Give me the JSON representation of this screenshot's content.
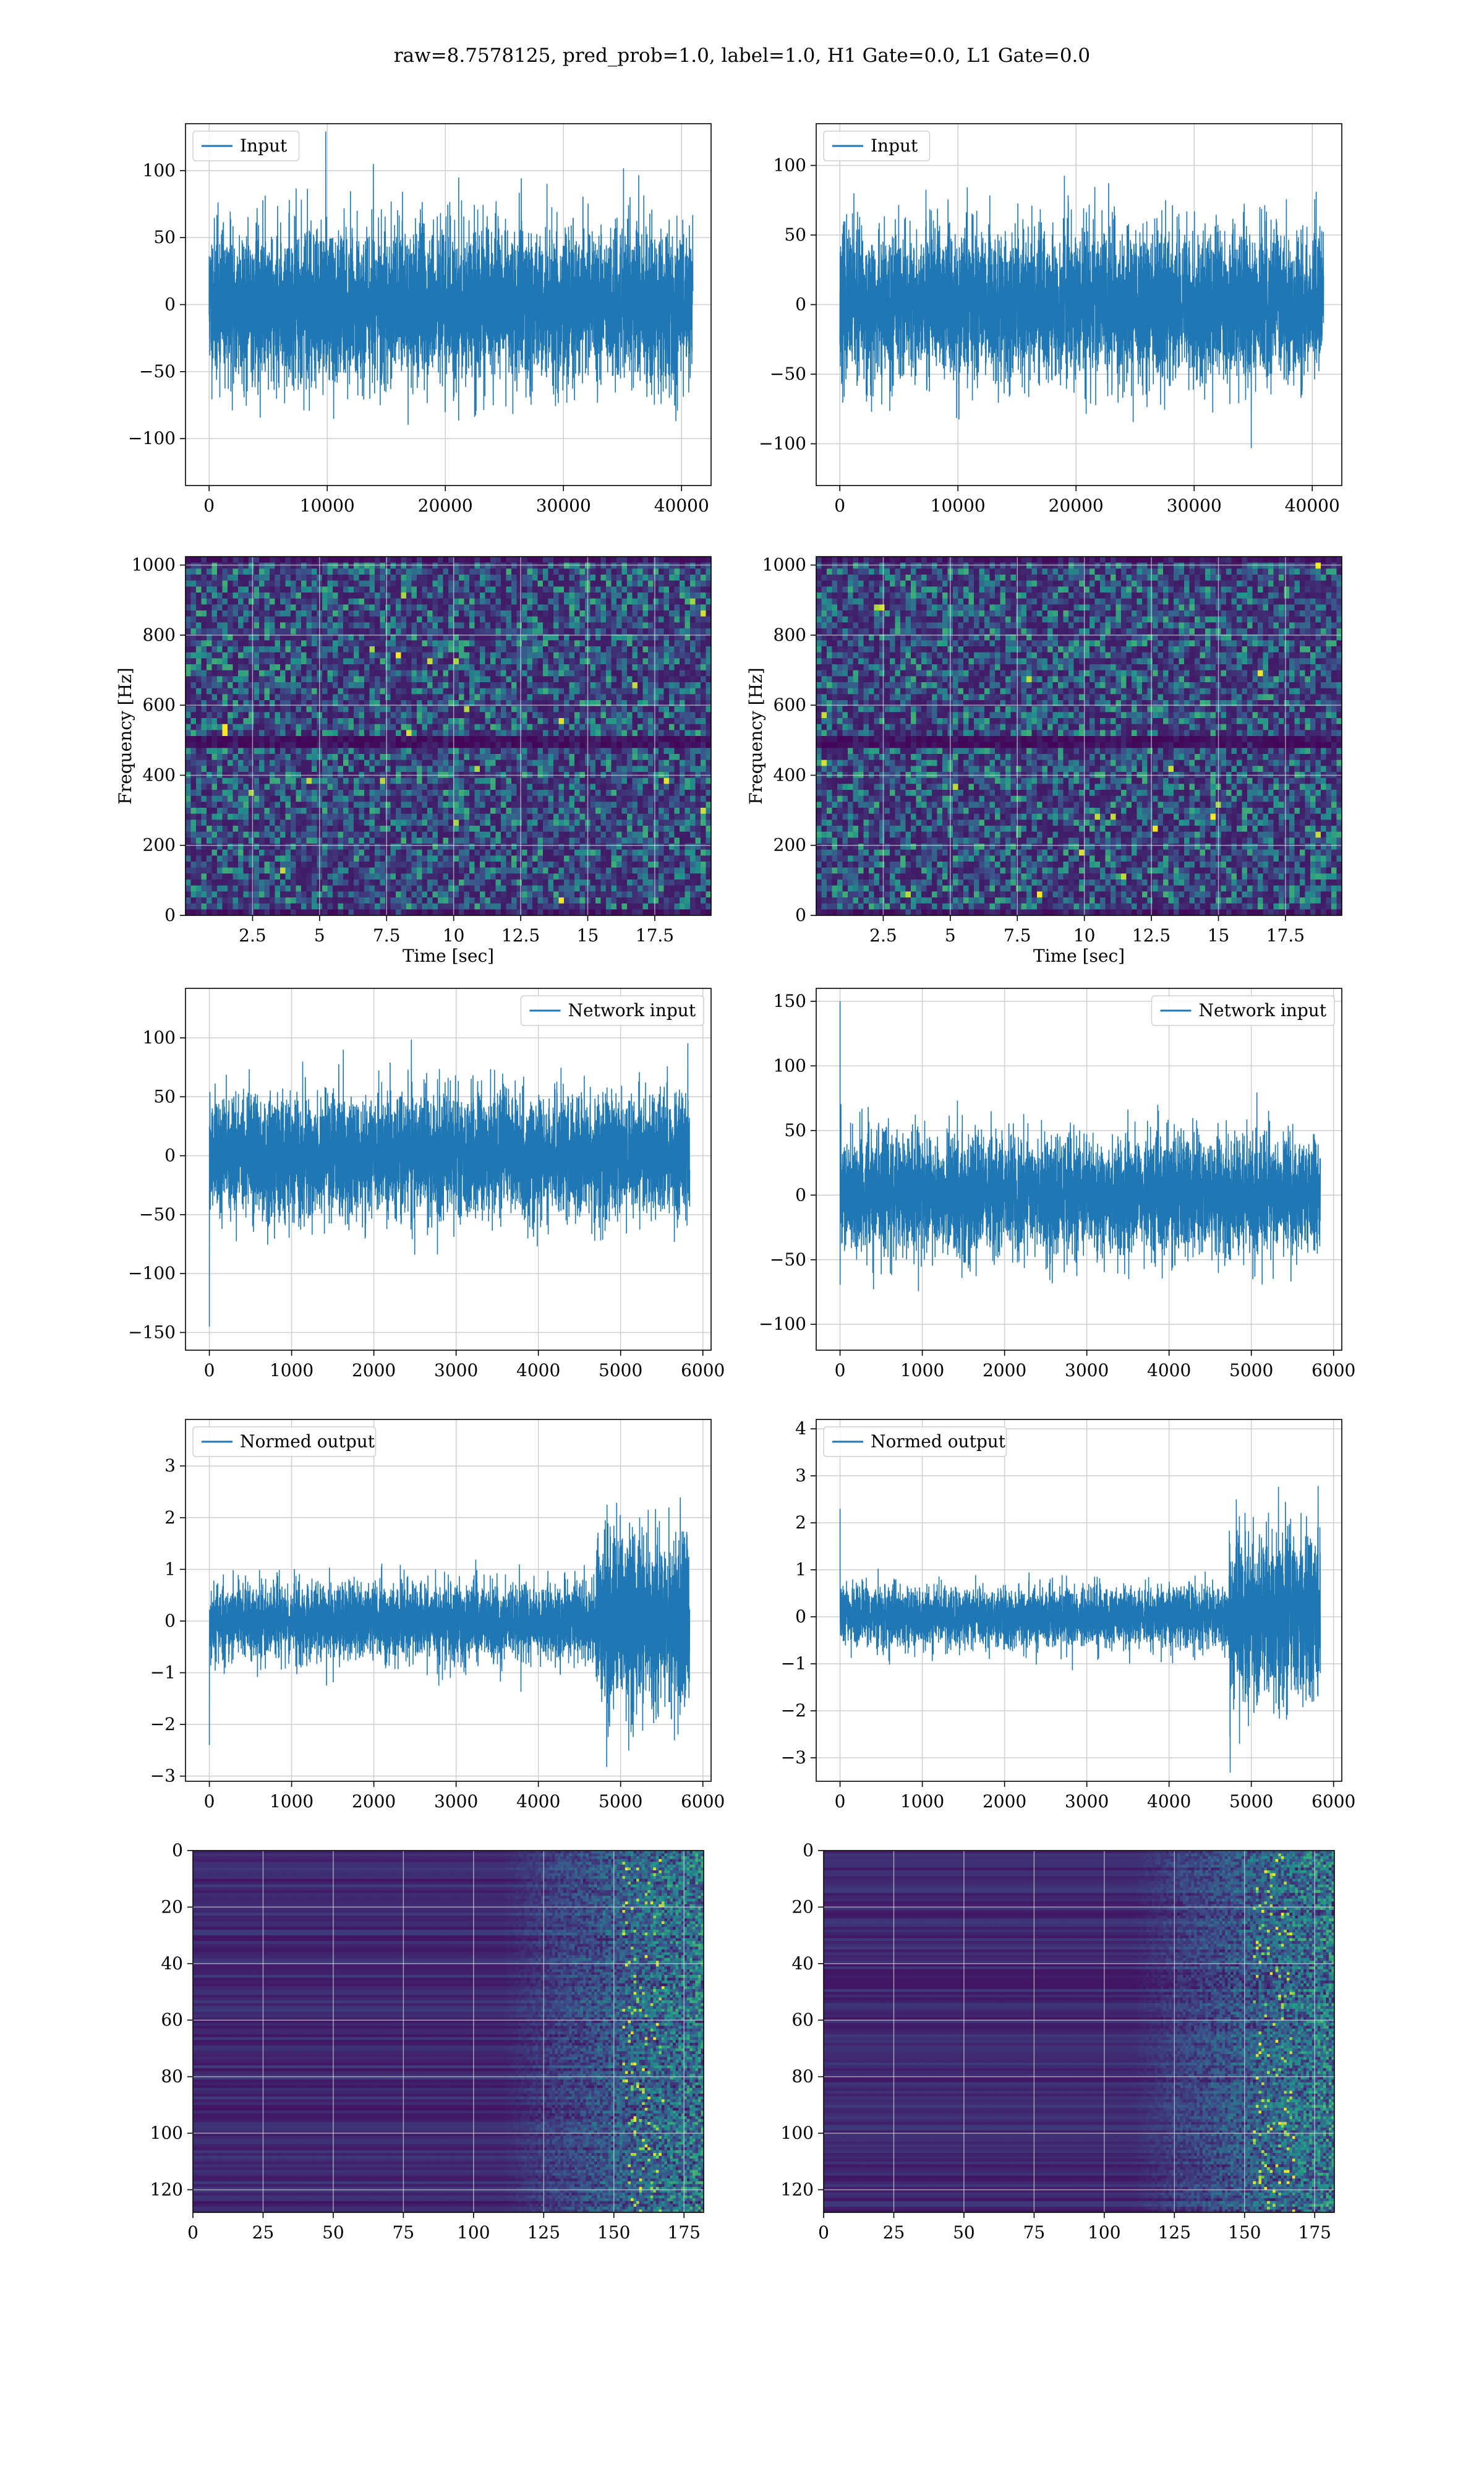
{
  "figure": {
    "title": "raw=8.7578125, pred_prob=1.0, label=1.0, H1 Gate=0.0, L1 Gate=0.0"
  },
  "colors": {
    "line": "#1f77b4",
    "grid": "#cfcfcf",
    "viridis": [
      "#440154",
      "#3b528b",
      "#21918c",
      "#5ec962",
      "#fde725"
    ]
  },
  "chart_data": [
    {
      "id": "input-left",
      "type": "line",
      "legend": "Input",
      "legend_loc": "upper-left",
      "xlim": [
        -2000,
        42500
      ],
      "ylim": [
        -135,
        135
      ],
      "xticks": [
        0,
        10000,
        20000,
        30000,
        40000
      ],
      "yticks": [
        -100,
        -50,
        0,
        50,
        100
      ],
      "yticklabels": [
        "−100",
        "−50",
        "0",
        "50",
        "100"
      ],
      "signal": {
        "n": 40960,
        "x_end": 40960,
        "std": 28,
        "seed": 11
      },
      "xlabel": "",
      "ylabel": "",
      "grid": true
    },
    {
      "id": "input-right",
      "type": "line",
      "legend": "Input",
      "legend_loc": "upper-left",
      "xlim": [
        -2000,
        42500
      ],
      "ylim": [
        -130,
        130
      ],
      "xticks": [
        0,
        10000,
        20000,
        30000,
        40000
      ],
      "yticks": [
        -100,
        -50,
        0,
        50,
        100
      ],
      "yticklabels": [
        "−100",
        "−50",
        "0",
        "50",
        "100"
      ],
      "signal": {
        "n": 40960,
        "x_end": 40960,
        "std": 26,
        "seed": 23
      },
      "xlabel": "",
      "ylabel": "",
      "grid": true
    },
    {
      "id": "spectrogram-left",
      "type": "heatmap",
      "xlim": [
        0,
        19.6
      ],
      "ylim": [
        0,
        1024
      ],
      "xticks": [
        2.5,
        5.0,
        7.5,
        10.0,
        12.5,
        15.0,
        17.5
      ],
      "yticks": [
        0,
        200,
        400,
        600,
        800,
        1000
      ],
      "xlabel": "Time [sec]",
      "ylabel": "Frequency [Hz]",
      "grid": true,
      "cells": {
        "cols": 100,
        "rows": 60,
        "seed": 5,
        "dark_band_hz": 500
      }
    },
    {
      "id": "spectrogram-right",
      "type": "heatmap",
      "xlim": [
        0,
        19.6
      ],
      "ylim": [
        0,
        1024
      ],
      "xticks": [
        2.5,
        5.0,
        7.5,
        10.0,
        12.5,
        15.0,
        17.5
      ],
      "yticks": [
        0,
        200,
        400,
        600,
        800,
        1000
      ],
      "xlabel": "Time [sec]",
      "ylabel": "Frequency [Hz]",
      "grid": true,
      "cells": {
        "cols": 100,
        "rows": 60,
        "seed": 9,
        "dark_band_hz": 500
      }
    },
    {
      "id": "network-input-left",
      "type": "line",
      "legend": "Network input",
      "legend_loc": "upper-right",
      "xlim": [
        -290,
        6100
      ],
      "ylim": [
        -165,
        142
      ],
      "xticks": [
        0,
        1000,
        2000,
        3000,
        4000,
        5000,
        6000
      ],
      "yticks": [
        -150,
        -100,
        -50,
        0,
        50,
        100
      ],
      "yticklabels": [
        "−150",
        "−100",
        "−50",
        "0",
        "50",
        "100"
      ],
      "signal": {
        "n": 5840,
        "x_end": 5840,
        "std": 25,
        "seed": 31,
        "start_spike": -145
      },
      "xlabel": "",
      "ylabel": "",
      "grid": true
    },
    {
      "id": "network-input-right",
      "type": "line",
      "legend": "Network input",
      "legend_loc": "upper-right",
      "xlim": [
        -290,
        6100
      ],
      "ylim": [
        -120,
        160
      ],
      "xticks": [
        0,
        1000,
        2000,
        3000,
        4000,
        5000,
        6000
      ],
      "yticks": [
        -100,
        -50,
        0,
        50,
        100,
        150
      ],
      "yticklabels": [
        "−100",
        "−50",
        "0",
        "50",
        "100",
        "150"
      ],
      "signal": {
        "n": 5840,
        "x_end": 5840,
        "std": 22,
        "seed": 47,
        "start_spike": 150
      },
      "xlabel": "",
      "ylabel": "",
      "grid": true
    },
    {
      "id": "normed-output-left",
      "type": "line",
      "legend": "Normed output",
      "legend_loc": "upper-left",
      "xlim": [
        -290,
        6100
      ],
      "ylim": [
        -3.1,
        3.9
      ],
      "xticks": [
        0,
        1000,
        2000,
        3000,
        4000,
        5000,
        6000
      ],
      "yticks": [
        -3,
        -2,
        -1,
        0,
        1,
        2,
        3
      ],
      "yticklabels": [
        "−3",
        "−2",
        "−1",
        "0",
        "1",
        "2",
        "3"
      ],
      "signal": {
        "n": 5840,
        "x_end": 5840,
        "std": 0.36,
        "seed": 53,
        "start_spike": -2.4,
        "burst_from": 4700,
        "burst_gain": 2.4
      },
      "xlabel": "",
      "ylabel": "",
      "grid": true
    },
    {
      "id": "normed-output-right",
      "type": "line",
      "legend": "Normed output",
      "legend_loc": "upper-left",
      "xlim": [
        -290,
        6100
      ],
      "ylim": [
        -3.5,
        4.2
      ],
      "xticks": [
        0,
        1000,
        2000,
        3000,
        4000,
        5000,
        6000
      ],
      "yticks": [
        -3,
        -2,
        -1,
        0,
        1,
        2,
        3,
        4
      ],
      "yticklabels": [
        "−3",
        "−2",
        "−1",
        "0",
        "1",
        "2",
        "3",
        "4"
      ],
      "signal": {
        "n": 5840,
        "x_end": 5840,
        "std": 0.3,
        "seed": 67,
        "start_spike": 2.3,
        "burst_from": 4730,
        "burst_gain": 3.0
      },
      "xlabel": "",
      "ylabel": "",
      "grid": true
    },
    {
      "id": "feature-map-left",
      "type": "heatmap",
      "xlim": [
        0,
        182
      ],
      "ylim": [
        128,
        0
      ],
      "xticks": [
        0,
        25,
        50,
        75,
        100,
        125,
        150,
        175
      ],
      "yticks": [
        0,
        20,
        40,
        60,
        80,
        100,
        120
      ],
      "xlabel": "",
      "ylabel": "",
      "grid": true,
      "cells": {
        "cols": 182,
        "rows": 128,
        "seed": 71,
        "bright_from": 110
      }
    },
    {
      "id": "feature-map-right",
      "type": "heatmap",
      "xlim": [
        0,
        182
      ],
      "ylim": [
        128,
        0
      ],
      "xticks": [
        0,
        25,
        50,
        75,
        100,
        125,
        150,
        175
      ],
      "yticks": [
        0,
        20,
        40,
        60,
        80,
        100,
        120
      ],
      "xlabel": "",
      "ylabel": "",
      "grid": true,
      "cells": {
        "cols": 182,
        "rows": 128,
        "seed": 83,
        "bright_from": 110
      }
    }
  ]
}
